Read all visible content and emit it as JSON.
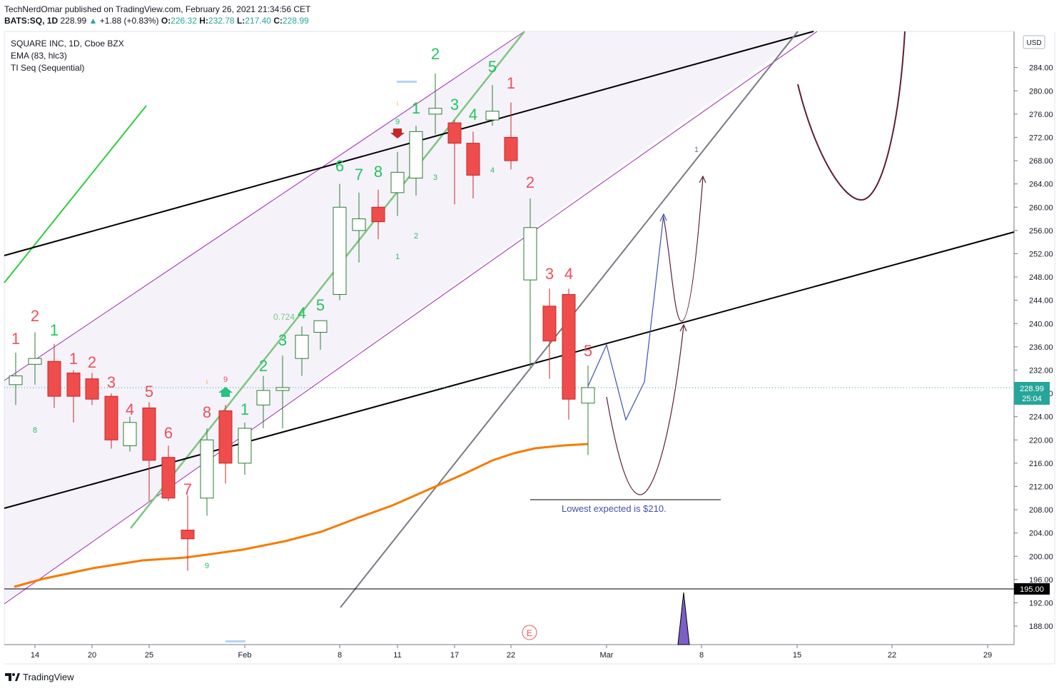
{
  "header": {
    "published": "TechNerdOmar published on TradingView.com, February 26, 2021 21:34:56 CET",
    "symbol_line": "BATS:SQ, 1D",
    "last": "228.99",
    "change": "+1.88 (+0.83%)",
    "ohlc": {
      "o_label": "O:",
      "o": "226.32",
      "h_label": "H:",
      "h": "232.78",
      "l_label": "L:",
      "l": "217.40",
      "c_label": "C:",
      "c": "228.99"
    }
  },
  "legend": {
    "title": "SQUARE INC, 1D, Cboe BZX",
    "ema": "EMA (83, hlc3)",
    "ti": "TI Seq (Sequential)"
  },
  "currency": "USD",
  "price_tag": {
    "price": "228.99",
    "countdown": "25:04"
  },
  "level_tag": "195.00",
  "annotation": "Lowest expected is $210.",
  "earnings_marker": "E",
  "fib_label": "0.724",
  "footer_brand": "TradingView",
  "colors": {
    "bull": "#26a69a",
    "bear": "#ef5350",
    "green_count": "#22c55e",
    "red_count": "#f0505a",
    "ema": "#f57c00",
    "channel": "#9c27b0"
  },
  "chart_data": {
    "type": "candlestick",
    "y_axis_ticks": [
      188,
      192,
      196,
      200,
      204,
      208,
      212,
      216,
      220,
      224,
      228,
      232,
      236,
      240,
      244,
      248,
      252,
      256,
      260,
      264,
      268,
      272,
      276,
      280,
      284
    ],
    "x_axis_ticks": [
      "14",
      "20",
      "25",
      "Feb",
      "8",
      "11",
      "17",
      "22",
      "Mar",
      "8",
      "15",
      "22",
      "29"
    ],
    "candles": [
      {
        "date": "Jan 13",
        "o": 229.5,
        "h": 235,
        "l": 226,
        "c": 231
      },
      {
        "date": "Jan 14",
        "o": 233,
        "h": 238.5,
        "l": 229.5,
        "c": 234
      },
      {
        "date": "Jan 15",
        "o": 233.5,
        "h": 236.5,
        "l": 225.5,
        "c": 227.5
      },
      {
        "date": "Jan 19",
        "o": 231.5,
        "h": 232,
        "l": 223,
        "c": 227.5
      },
      {
        "date": "Jan 20",
        "o": 230.5,
        "h": 231.5,
        "l": 226,
        "c": 227
      },
      {
        "date": "Jan 21",
        "o": 227.5,
        "h": 228,
        "l": 218.5,
        "c": 220
      },
      {
        "date": "Jan 22",
        "o": 219,
        "h": 224,
        "l": 218,
        "c": 223
      },
      {
        "date": "Jan 25",
        "o": 225.5,
        "h": 226.5,
        "l": 209.5,
        "c": 216.5
      },
      {
        "date": "Jan 26",
        "o": 217,
        "h": 219,
        "l": 209.5,
        "c": 210
      },
      {
        "date": "Jan 27",
        "o": 204.5,
        "h": 210.5,
        "l": 197.5,
        "c": 203
      },
      {
        "date": "Jan 28",
        "o": 210,
        "h": 222,
        "l": 207,
        "c": 220
      },
      {
        "date": "Jan 29",
        "o": 225,
        "h": 226,
        "l": 212.5,
        "c": 216
      },
      {
        "date": "Feb 1",
        "o": 216,
        "h": 223,
        "l": 214,
        "c": 222
      },
      {
        "date": "Feb 2",
        "o": 226,
        "h": 231,
        "l": 222,
        "c": 228.5
      },
      {
        "date": "Feb 3",
        "o": 228.5,
        "h": 234.5,
        "l": 222,
        "c": 229
      },
      {
        "date": "Feb 4",
        "o": 234,
        "h": 239.5,
        "l": 231,
        "c": 238
      },
      {
        "date": "Feb 5",
        "o": 238.5,
        "h": 240.5,
        "l": 235.5,
        "c": 240.5
      },
      {
        "date": "Feb 8",
        "o": 245,
        "h": 264,
        "l": 244,
        "c": 260
      },
      {
        "date": "Feb 9",
        "o": 256,
        "h": 262.5,
        "l": 250.5,
        "c": 258
      },
      {
        "date": "Feb 10",
        "o": 260,
        "h": 263,
        "l": 254.5,
        "c": 257.5
      },
      {
        "date": "Feb 11",
        "o": 262.5,
        "h": 269.5,
        "l": 258.5,
        "c": 266
      },
      {
        "date": "Feb 12",
        "o": 265,
        "h": 274,
        "l": 262,
        "c": 273
      },
      {
        "date": "Feb 16",
        "o": 276,
        "h": 283,
        "l": 272.5,
        "c": 277
      },
      {
        "date": "Feb 17",
        "o": 274.5,
        "h": 275,
        "l": 260.5,
        "c": 271
      },
      {
        "date": "Feb 18",
        "o": 271,
        "h": 273,
        "l": 261.5,
        "c": 265.5
      },
      {
        "date": "Feb 19",
        "o": 275,
        "h": 281,
        "l": 274,
        "c": 276.5
      },
      {
        "date": "Feb 22",
        "o": 272,
        "h": 278,
        "l": 266.5,
        "c": 268
      },
      {
        "date": "Feb 23",
        "o": 247.5,
        "h": 261.5,
        "l": 232.5,
        "c": 256.5
      },
      {
        "date": "Feb 24",
        "o": 243,
        "h": 246,
        "l": 230.5,
        "c": 237
      },
      {
        "date": "Feb 25",
        "o": 245,
        "h": 246,
        "l": 223.5,
        "c": 227
      },
      {
        "date": "Feb 26",
        "o": 226.32,
        "h": 232.78,
        "l": 217.4,
        "c": 228.99
      }
    ]
  }
}
